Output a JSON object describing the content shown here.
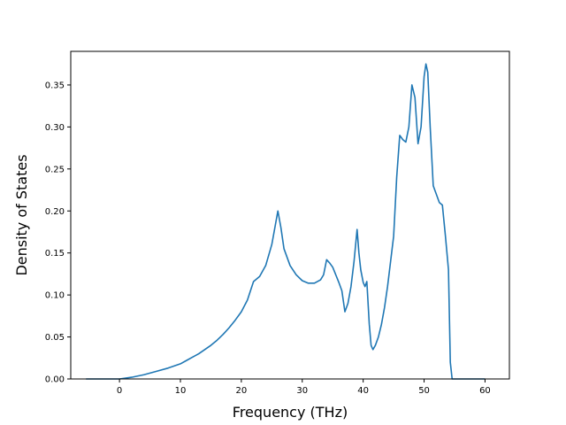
{
  "chart_data": {
    "type": "line",
    "title": "",
    "xlabel": "Frequency (THz)",
    "ylabel": "Density of States",
    "xlim": [
      -8,
      64
    ],
    "ylim": [
      0,
      0.39
    ],
    "xticks": [
      0,
      10,
      20,
      30,
      40,
      50,
      60
    ],
    "yticks": [
      0.0,
      0.05,
      0.1,
      0.15,
      0.2,
      0.25,
      0.3,
      0.35
    ],
    "grid": false,
    "color": "#1f77b4",
    "series": [
      {
        "x": [
          -5.5,
          -3,
          0,
          2,
          4,
          6,
          8,
          10,
          11,
          12,
          13,
          14,
          15,
          16,
          17,
          18,
          19,
          20,
          21,
          21.5,
          22,
          23,
          24,
          25,
          25.5,
          26,
          26.5,
          27,
          28,
          29,
          30,
          31,
          32,
          33,
          33.5,
          34,
          34.5,
          35,
          36,
          36.5,
          37,
          37.5,
          38,
          38.5,
          39,
          39.3,
          39.6,
          40,
          40.3,
          40.6,
          41,
          41.3,
          41.6,
          42,
          42.5,
          43,
          43.5,
          44,
          44.5,
          45,
          45.5,
          46,
          46.5,
          47,
          47.5,
          48,
          48.5,
          49,
          49.5,
          50,
          50.3,
          50.6,
          51,
          51.5,
          52,
          52.5,
          53,
          53.5,
          54,
          54.3,
          54.6,
          55,
          56,
          60
        ],
        "y": [
          0,
          0,
          0,
          0.002,
          0.005,
          0.009,
          0.013,
          0.018,
          0.022,
          0.026,
          0.03,
          0.035,
          0.04,
          0.046,
          0.053,
          0.061,
          0.07,
          0.08,
          0.094,
          0.105,
          0.116,
          0.122,
          0.135,
          0.16,
          0.18,
          0.2,
          0.18,
          0.155,
          0.135,
          0.124,
          0.117,
          0.114,
          0.114,
          0.118,
          0.124,
          0.142,
          0.138,
          0.133,
          0.115,
          0.105,
          0.08,
          0.09,
          0.11,
          0.14,
          0.178,
          0.15,
          0.13,
          0.115,
          0.11,
          0.116,
          0.065,
          0.04,
          0.035,
          0.04,
          0.05,
          0.065,
          0.085,
          0.11,
          0.14,
          0.17,
          0.24,
          0.29,
          0.285,
          0.282,
          0.3,
          0.35,
          0.335,
          0.28,
          0.3,
          0.36,
          0.375,
          0.365,
          0.3,
          0.23,
          0.22,
          0.21,
          0.207,
          0.17,
          0.13,
          0.02,
          0,
          0,
          0,
          0
        ]
      }
    ]
  }
}
